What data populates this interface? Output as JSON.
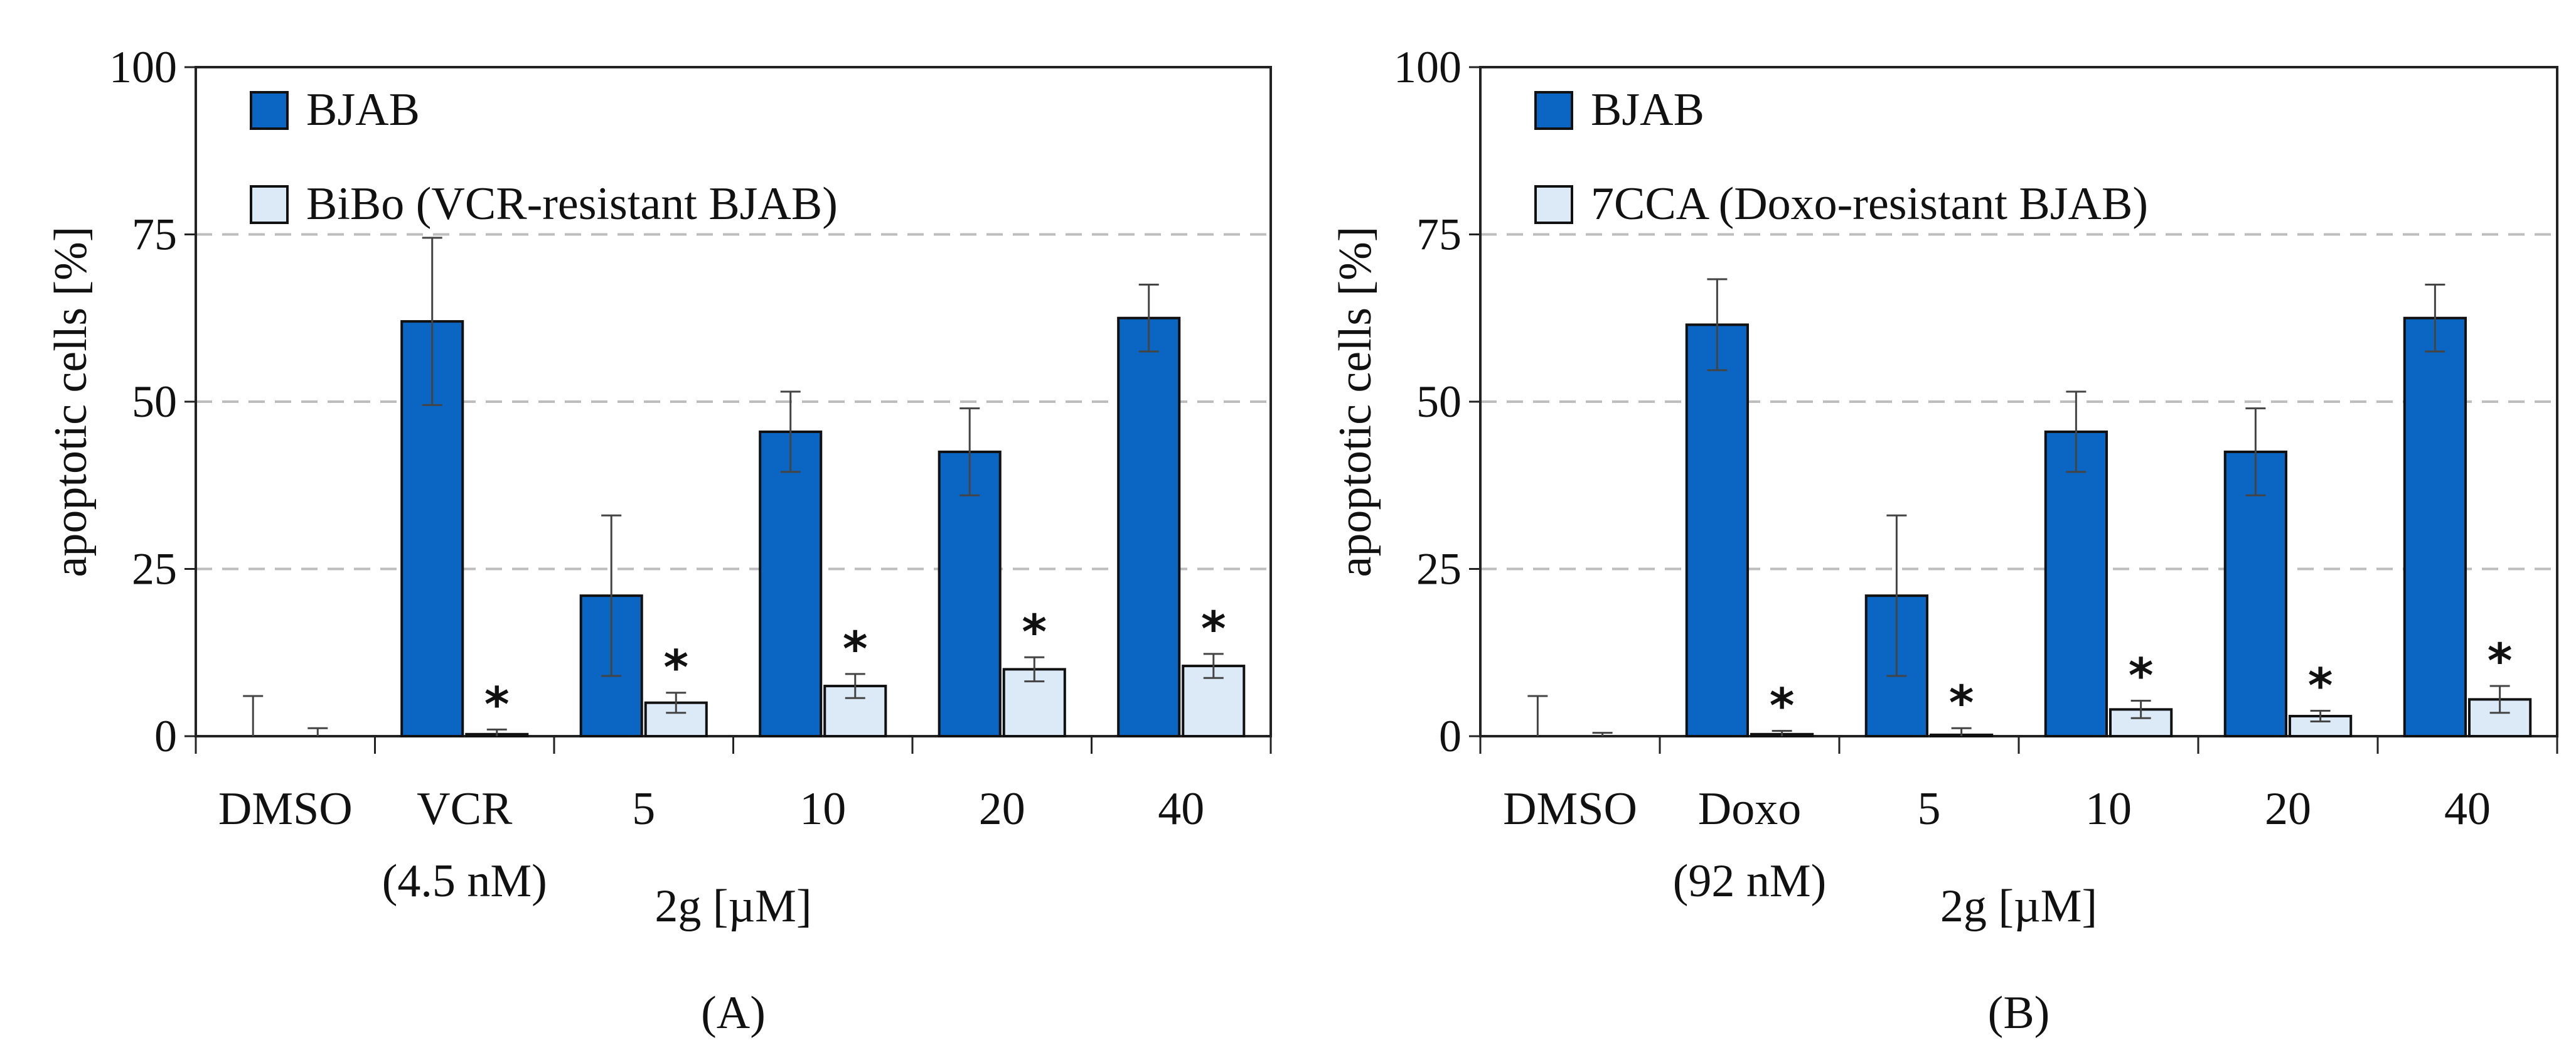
{
  "chart_data": [
    {
      "type": "bar",
      "panel_label": "(A)",
      "ylabel": "apoptotic cells [%]",
      "ylim": [
        0,
        100
      ],
      "yticks": [
        "0",
        "25",
        "50",
        "75",
        "100"
      ],
      "grid": "dashed horizontal",
      "legend_position": "top-left",
      "categories": [
        "DMSO",
        "VCR",
        "5",
        "10",
        "20",
        "40"
      ],
      "category_sublabels": [
        "",
        "(4.5 nM)",
        "",
        "",
        "",
        ""
      ],
      "xlabel": "2g [µM]",
      "series": [
        {
          "name": "BJAB",
          "color": "#0a66c2",
          "values": [
            0,
            62,
            21,
            45.5,
            42.5,
            62.5
          ],
          "errors": [
            6,
            12.5,
            12,
            6,
            6.5,
            5
          ]
        },
        {
          "name": "BiBo (VCR-resistant BJAB)",
          "color": "#dce9f7",
          "values": [
            0,
            0.3,
            5,
            7.5,
            10,
            10.5
          ],
          "errors": [
            1.2,
            0.7,
            1.5,
            1.8,
            1.8,
            1.8
          ]
        }
      ],
      "significance": [
        "",
        "*",
        "*",
        "*",
        "*",
        "*"
      ],
      "significance_marker": "*"
    },
    {
      "type": "bar",
      "panel_label": "(B)",
      "ylabel": "apoptotic cells [%]",
      "ylim": [
        0,
        100
      ],
      "yticks": [
        "0",
        "25",
        "50",
        "75",
        "100"
      ],
      "grid": "dashed horizontal",
      "legend_position": "top-left",
      "categories": [
        "DMSO",
        "Doxo",
        "5",
        "10",
        "20",
        "40"
      ],
      "category_sublabels": [
        "",
        "(92 nM)",
        "",
        "",
        "",
        ""
      ],
      "xlabel": "2g [µM]",
      "series": [
        {
          "name": "BJAB",
          "color": "#0a66c2",
          "values": [
            0,
            61.5,
            21,
            45.5,
            42.5,
            62.5
          ],
          "errors": [
            6,
            6.8,
            12,
            6,
            6.5,
            5
          ]
        },
        {
          "name": "7CCA (Doxo-resistant BJAB)",
          "color": "#dce9f7",
          "values": [
            0,
            0.3,
            0.2,
            4,
            3,
            5.5
          ],
          "errors": [
            0.5,
            0.5,
            1,
            1.3,
            0.8,
            2
          ]
        }
      ],
      "significance": [
        "",
        "*",
        "*",
        "*",
        "*",
        "*"
      ],
      "significance_marker": "*"
    }
  ]
}
